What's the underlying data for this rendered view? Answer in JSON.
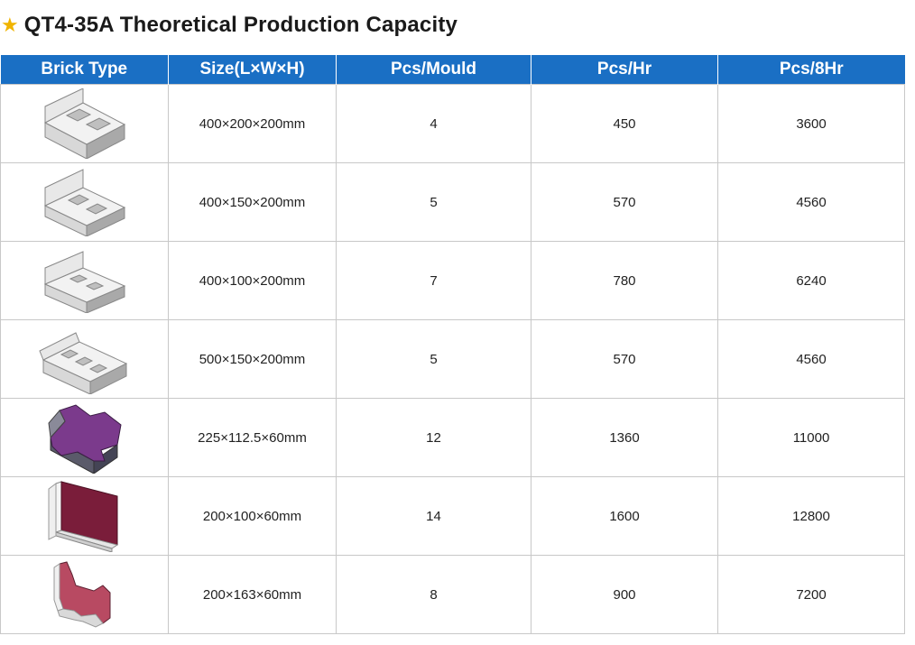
{
  "title": "QT4-35A Theoretical Production Capacity",
  "star_color": "#f0b400",
  "header_color": "#1a6fc4",
  "columns": [
    "Brick Type",
    "Size(L×W×H)",
    "Pcs/Mould",
    "Pcs/Hr",
    "Pcs/8Hr"
  ],
  "rows": [
    {
      "icon": "hollow-block-icon",
      "size": "400×200×200mm",
      "pcs_mould": "4",
      "pcs_hr": "450",
      "pcs_8hr": "3600"
    },
    {
      "icon": "hollow-block-icon",
      "size": "400×150×200mm",
      "pcs_mould": "5",
      "pcs_hr": "570",
      "pcs_8hr": "4560"
    },
    {
      "icon": "hollow-block-icon",
      "size": "400×100×200mm",
      "pcs_mould": "7",
      "pcs_hr": "780",
      "pcs_8hr": "6240"
    },
    {
      "icon": "hollow-block-3-hole-icon",
      "size": "500×150×200mm",
      "pcs_mould": "5",
      "pcs_hr": "570",
      "pcs_8hr": "4560"
    },
    {
      "icon": "interlocking-paver-icon",
      "size": "225×112.5×60mm",
      "pcs_mould": "12",
      "pcs_hr": "1360",
      "pcs_8hr": "11000"
    },
    {
      "icon": "rectangular-paver-icon",
      "size": "200×100×60mm",
      "pcs_mould": "14",
      "pcs_hr": "1600",
      "pcs_8hr": "12800"
    },
    {
      "icon": "zigzag-paver-icon",
      "size": "200×163×60mm",
      "pcs_mould": "8",
      "pcs_hr": "900",
      "pcs_8hr": "7200"
    }
  ]
}
